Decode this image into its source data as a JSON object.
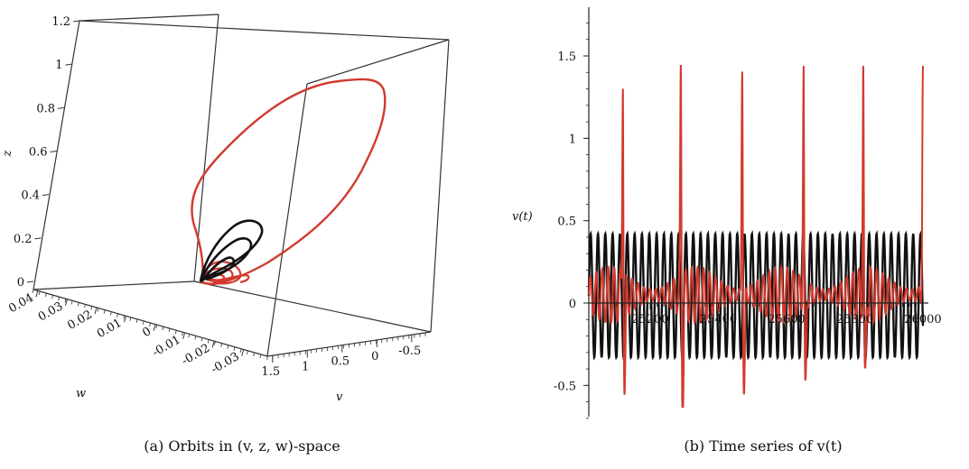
{
  "colors": {
    "red": "#d23a2e",
    "black": "#111111",
    "frame": "#333333"
  },
  "chart_data": [
    {
      "type": "line",
      "kind": "3d-orbit",
      "caption": "(a) Orbits in (v, z, w)-space",
      "xlabel": "w",
      "ylabel": "v",
      "zlabel": "z",
      "w_ticks": [
        "0.04",
        "0.03",
        "0.02",
        "0.01",
        "0",
        "-0.01",
        "-0.02",
        "-0.03"
      ],
      "v_ticks": [
        "1.5",
        "1",
        "0.5",
        "0",
        "-0.5"
      ],
      "z_ticks": [
        "0",
        "0.2",
        "0.4",
        "0.6",
        "0.8",
        "1",
        "1.2"
      ],
      "z_values": [
        0,
        0.2,
        0.4,
        0.6,
        0.8,
        1,
        1.2
      ],
      "zlim": [
        0,
        1.2
      ],
      "grid": false,
      "series": [
        {
          "color": "red",
          "description_points_z": [
            0.0,
            0.1,
            0.25,
            0.55,
            0.88,
            0.85,
            0.5,
            0.1,
            0.0
          ]
        },
        {
          "color": "black",
          "description_points_z": [
            0.0,
            0.12,
            0.23,
            0.2,
            0.08,
            0.0
          ]
        }
      ]
    },
    {
      "type": "line",
      "caption": "(b) Time series of v(t)",
      "ylabel": "v(t)",
      "x_ticks": [
        "25200",
        "25400",
        "25600",
        "25800",
        "26000"
      ],
      "x_values": [
        25200,
        25400,
        25600,
        25800,
        26000
      ],
      "y_ticks": [
        "-0.5",
        "0",
        "0.5",
        "1",
        "1.5"
      ],
      "y_values": [
        -0.5,
        0,
        0.5,
        1,
        1.5
      ],
      "xlim": [
        25020,
        26000
      ],
      "ylim": [
        -0.72,
        1.8
      ],
      "grid": false,
      "series": [
        {
          "color": "black",
          "oscillation_period": 21.5,
          "max": 0.42,
          "min": -0.33
        },
        {
          "color": "red",
          "spike_times": [
            25120,
            25290,
            25470,
            25650,
            25825,
            26000
          ],
          "spike_max": 1.44,
          "spike_min": -0.63
        }
      ]
    }
  ]
}
